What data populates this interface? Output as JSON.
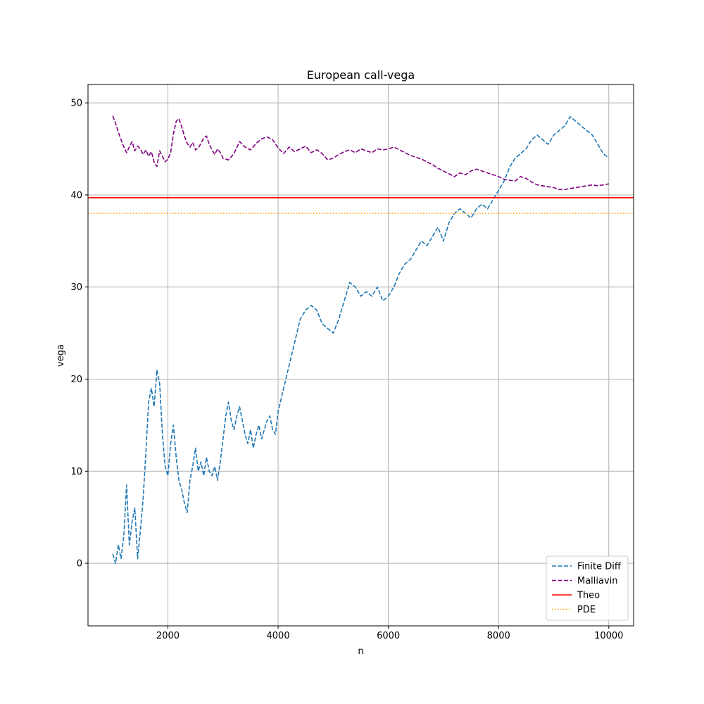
{
  "chart_data": {
    "type": "line",
    "title": "European call-vega",
    "xlabel": "n",
    "ylabel": "vega",
    "xlim": [
      550,
      10450
    ],
    "ylim": [
      -6.8,
      52
    ],
    "xticks": [
      2000,
      4000,
      6000,
      8000,
      10000
    ],
    "yticks": [
      0,
      10,
      20,
      30,
      40,
      50
    ],
    "grid": true,
    "legend_position": "lower-right",
    "series": [
      {
        "name": "Finite Diff",
        "style": "dashed",
        "color": "#1f77b4",
        "x": [
          1000,
          1050,
          1100,
          1150,
          1200,
          1250,
          1300,
          1350,
          1400,
          1450,
          1500,
          1550,
          1600,
          1650,
          1700,
          1750,
          1800,
          1850,
          1900,
          1950,
          2000,
          2050,
          2100,
          2150,
          2200,
          2250,
          2300,
          2350,
          2400,
          2450,
          2500,
          2550,
          2600,
          2650,
          2700,
          2750,
          2800,
          2850,
          2900,
          2950,
          3000,
          3050,
          3100,
          3150,
          3200,
          3250,
          3300,
          3350,
          3400,
          3450,
          3500,
          3550,
          3600,
          3650,
          3700,
          3750,
          3800,
          3850,
          3900,
          3950,
          4000,
          4100,
          4200,
          4300,
          4400,
          4500,
          4600,
          4700,
          4800,
          4900,
          5000,
          5100,
          5200,
          5300,
          5400,
          5500,
          5600,
          5700,
          5800,
          5900,
          6000,
          6100,
          6200,
          6300,
          6400,
          6500,
          6600,
          6700,
          6800,
          6900,
          7000,
          7100,
          7200,
          7300,
          7400,
          7500,
          7600,
          7700,
          7800,
          7900,
          8000,
          8100,
          8200,
          8300,
          8400,
          8500,
          8600,
          8700,
          8800,
          8900,
          9000,
          9100,
          9200,
          9300,
          9400,
          9500,
          9600,
          9700,
          9800,
          9900,
          10000
        ],
        "y": [
          1.0,
          0.0,
          2.0,
          0.5,
          3.0,
          8.5,
          2.0,
          4.5,
          6.0,
          0.5,
          3.5,
          7.0,
          12.0,
          17.5,
          19.0,
          17.0,
          21.0,
          19.5,
          14.0,
          10.5,
          9.5,
          13.0,
          15.0,
          11.5,
          9.0,
          8.0,
          6.5,
          5.5,
          9.0,
          10.5,
          12.5,
          10.0,
          11.0,
          9.5,
          11.5,
          10.0,
          9.5,
          10.5,
          9.0,
          11.0,
          13.5,
          16.0,
          17.5,
          15.5,
          14.5,
          16.0,
          17.0,
          15.5,
          14.0,
          13.0,
          14.5,
          12.5,
          14.0,
          15.0,
          13.5,
          14.5,
          15.5,
          16.0,
          14.5,
          14.0,
          16.5,
          19.0,
          21.5,
          24.0,
          26.5,
          27.5,
          28.0,
          27.5,
          26.0,
          25.5,
          25.0,
          26.5,
          28.5,
          30.5,
          30.0,
          29.0,
          29.5,
          29.0,
          30.0,
          28.5,
          29.0,
          30.0,
          31.5,
          32.5,
          33.0,
          34.0,
          35.0,
          34.5,
          35.5,
          36.5,
          35.0,
          37.0,
          38.0,
          38.5,
          38.0,
          37.5,
          38.5,
          39.0,
          38.5,
          39.5,
          40.5,
          41.5,
          43.0,
          44.0,
          44.5,
          45.0,
          46.0,
          46.5,
          46.0,
          45.5,
          46.5,
          47.0,
          47.5,
          48.5,
          48.0,
          47.5,
          47.0,
          46.5,
          45.5,
          44.5,
          44.0
        ]
      },
      {
        "name": "Malliavin",
        "style": "dashed",
        "color": "#800080",
        "x": [
          1000,
          1050,
          1100,
          1150,
          1200,
          1250,
          1300,
          1350,
          1400,
          1450,
          1500,
          1550,
          1600,
          1650,
          1700,
          1750,
          1800,
          1850,
          1900,
          1950,
          2000,
          2050,
          2100,
          2150,
          2200,
          2250,
          2300,
          2350,
          2400,
          2450,
          2500,
          2550,
          2600,
          2650,
          2700,
          2750,
          2800,
          2850,
          2900,
          2950,
          3000,
          3100,
          3200,
          3300,
          3400,
          3500,
          3600,
          3700,
          3800,
          3900,
          4000,
          4100,
          4200,
          4300,
          4400,
          4500,
          4600,
          4700,
          4800,
          4900,
          5000,
          5100,
          5200,
          5300,
          5400,
          5500,
          5600,
          5700,
          5800,
          5900,
          6000,
          6100,
          6200,
          6300,
          6400,
          6500,
          6600,
          6700,
          6800,
          6900,
          7000,
          7100,
          7200,
          7300,
          7400,
          7500,
          7600,
          7700,
          7800,
          7900,
          8000,
          8100,
          8200,
          8300,
          8400,
          8500,
          8600,
          8700,
          8800,
          8900,
          9000,
          9100,
          9200,
          9300,
          9400,
          9500,
          9600,
          9700,
          9800,
          9900,
          10000
        ],
        "y": [
          48.6,
          47.8,
          46.8,
          46.0,
          45.2,
          44.6,
          45.2,
          45.8,
          44.8,
          45.3,
          45.0,
          44.4,
          44.9,
          44.2,
          44.7,
          43.6,
          43.1,
          44.8,
          44.2,
          43.6,
          43.9,
          44.6,
          46.6,
          48.0,
          48.3,
          47.4,
          46.4,
          45.6,
          45.2,
          45.7,
          44.9,
          45.1,
          45.6,
          46.2,
          46.4,
          45.5,
          44.9,
          44.4,
          45.0,
          44.6,
          44.0,
          43.8,
          44.5,
          45.8,
          45.2,
          44.9,
          45.6,
          46.1,
          46.3,
          46.0,
          45.1,
          44.5,
          45.2,
          44.7,
          45.0,
          45.3,
          44.6,
          44.9,
          44.5,
          43.8,
          44.0,
          44.4,
          44.7,
          44.9,
          44.6,
          45.0,
          44.8,
          44.6,
          45.0,
          44.9,
          45.0,
          45.2,
          44.9,
          44.6,
          44.3,
          44.1,
          43.9,
          43.6,
          43.3,
          42.9,
          42.6,
          42.3,
          42.0,
          42.4,
          42.2,
          42.6,
          42.8,
          42.6,
          42.4,
          42.2,
          42.0,
          41.7,
          41.6,
          41.5,
          42.0,
          41.8,
          41.4,
          41.1,
          41.0,
          40.9,
          40.8,
          40.6,
          40.6,
          40.7,
          40.8,
          40.9,
          41.0,
          41.1,
          41.0,
          41.1,
          41.2
        ]
      },
      {
        "name": "Theo",
        "style": "solid",
        "color": "#ff0000",
        "constant": 39.7
      },
      {
        "name": "PDE",
        "style": "dotted",
        "color": "#ffa500",
        "constant": 38.0
      }
    ]
  }
}
